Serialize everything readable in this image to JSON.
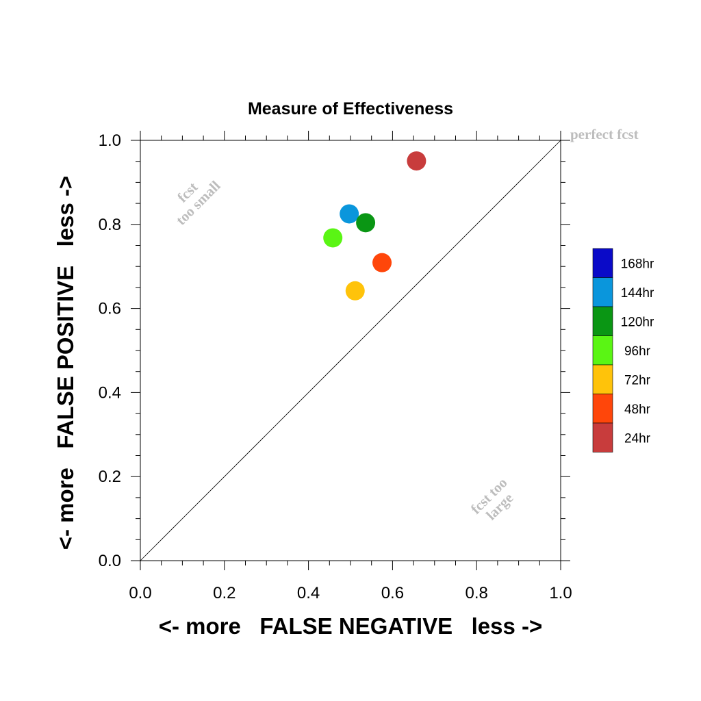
{
  "chart_data": {
    "type": "scatter",
    "title": "Measure of Effectiveness",
    "xlabel": "<- more   FALSE NEGATIVE   less ->",
    "ylabel": "<- more   FALSE POSITIVE   less ->",
    "xlim": [
      0,
      1
    ],
    "ylim": [
      0,
      1
    ],
    "xticks": [
      "0.0",
      "0.2",
      "0.4",
      "0.6",
      "0.8",
      "1.0"
    ],
    "yticks": [
      "0.0",
      "0.2",
      "0.4",
      "0.6",
      "0.8",
      "1.0"
    ],
    "grid": false,
    "reference_line": "diagonal y = x",
    "annotations": {
      "perfect": "perfect fcst",
      "too_small_1": "fcst",
      "too_small_2": "too small",
      "too_large_1": "fcst too",
      "too_large_2": "large"
    },
    "legend_position": "right",
    "series": [
      {
        "name": "168hr",
        "color": "#0a0ac8",
        "x": null,
        "y": null
      },
      {
        "name": "144hr",
        "color": "#0a96dc",
        "x": 0.497,
        "y": 0.825
      },
      {
        "name": "120hr",
        "color": "#0a9614",
        "x": 0.536,
        "y": 0.804
      },
      {
        "name": "96hr",
        "color": "#5af514",
        "x": 0.458,
        "y": 0.768
      },
      {
        "name": "72hr",
        "color": "#ffc30a",
        "x": 0.511,
        "y": 0.642
      },
      {
        "name": "48hr",
        "color": "#ff460a",
        "x": 0.575,
        "y": 0.709
      },
      {
        "name": "24hr",
        "color": "#c83c3c",
        "x": 0.657,
        "y": 0.951
      }
    ]
  }
}
